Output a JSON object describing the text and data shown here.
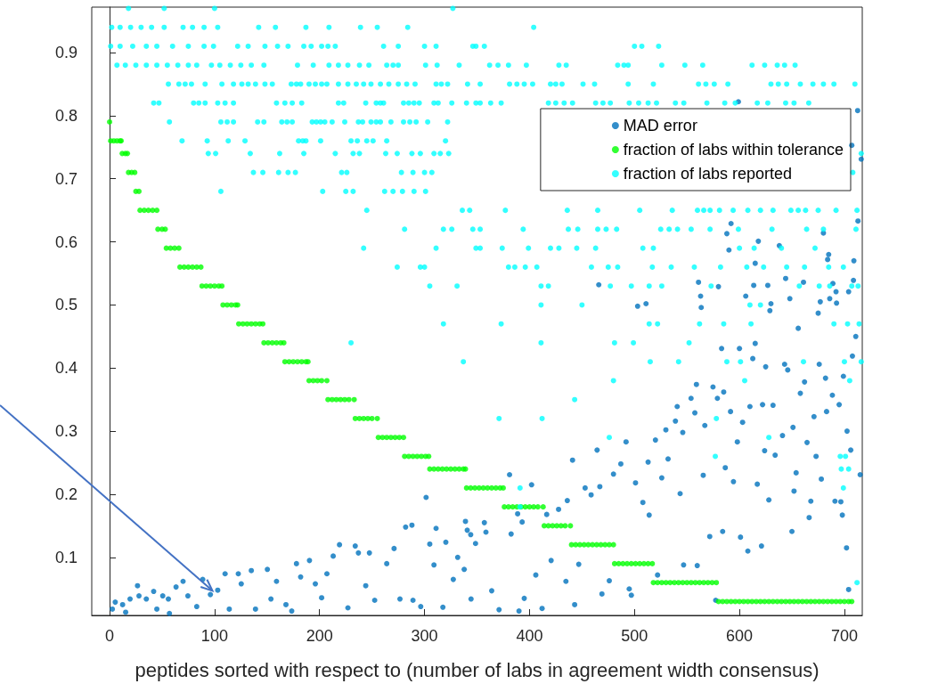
{
  "chart_data": {
    "type": "scatter",
    "xlabel": "peptides sorted with respect to (number of labs in agreement width consensus)",
    "xlim": [
      -17,
      717
    ],
    "xticks": [
      0,
      100,
      200,
      300,
      400,
      500,
      600,
      700
    ],
    "ylim": [
      0.008,
      0.972
    ],
    "yticks": [
      0.1,
      0.2,
      0.3,
      0.4,
      0.5,
      0.6,
      0.7,
      0.8,
      0.9
    ],
    "legend": "top right",
    "marker": "circle",
    "series": [
      {
        "name": "MAD error",
        "color": "#0072bd",
        "x": [
          2.6,
          5.4,
          12.4,
          15.3,
          19.5,
          26.6,
          28,
          35,
          42,
          45,
          50.6,
          56,
          57,
          63.3,
          70,
          74.6,
          83,
          88.7,
          96,
          103,
          110,
          114,
          122.6,
          125.4,
          135,
          139,
          150.3,
          153.7,
          159,
          168,
          173.5,
          178,
          182,
          190.4,
          196,
          202,
          207,
          213,
          219,
          227,
          234,
          237,
          244,
          247.5,
          252.5,
          264,
          271,
          276.6,
          282,
          288,
          289,
          296.4,
          301.5,
          305,
          309,
          311,
          317.5,
          320.3,
          327.4,
          331.6,
          337.8,
          339,
          340.7,
          344,
          344.3,
          348.6,
          357,
          358.5,
          364,
          371,
          381,
          382.5,
          388.7,
          390,
          393,
          395,
          402,
          406,
          412,
          416.4,
          420.6,
          427.7,
          434.7,
          436,
          441,
          443,
          446.9,
          453,
          458.7,
          464.4,
          467,
          469,
          476,
          480,
          487,
          492,
          495,
          497,
          501,
          508,
          513,
          514,
          520,
          522,
          526,
          529.9,
          532,
          539,
          540.7,
          543.5,
          546,
          546.8,
          553.9,
          557.5,
          559,
          559.8,
          565.5,
          567,
          571.7,
          574.8,
          577.4,
          579,
          583,
          584,
          586.5,
          585,
          591.5,
          594.3,
          598,
          600,
          601,
          603,
          608,
          610,
          612.7,
          615,
          617,
          621,
          622,
          624,
          625,
          628,
          629,
          632,
          634,
          641,
          643,
          646,
          650,
          651,
          652,
          654,
          656,
          658,
          662,
          664.4,
          666.4,
          668,
          671,
          673,
          675,
          676,
          678,
          682,
          683,
          688.5,
          691,
          695,
          696.6,
          698,
          699,
          702,
          702.5,
          704,
          706,
          707.6,
          710.8,
          715,
          599,
          712.6,
          707,
          716,
          712.9,
          592,
          588,
          618,
          590,
          638,
          680,
          685,
          684,
          709,
          615,
          644,
          661,
          708.6,
          561,
          466,
          580,
          613.6,
          627,
          689,
          692,
          704,
          606,
          563,
          648,
          503,
          511,
          563.6,
          630,
          677,
          686,
          692.5
        ],
        "values": [
          0.018,
          0.029,
          0.025,
          0.013,
          0.034,
          0.055,
          0.039,
          0.034,
          0.046,
          0.018,
          0.039,
          0.034,
          0.011,
          0.053,
          0.062,
          0.039,
          0.022,
          0.065,
          0.041,
          0.048,
          0.074,
          0.018,
          0.074,
          0.058,
          0.079,
          0.018,
          0.081,
          0.034,
          0.062,
          0.025,
          0.015,
          0.09,
          0.069,
          0.095,
          0.058,
          0.036,
          0.074,
          0.102,
          0.12,
          0.02,
          0.118,
          0.107,
          0.055,
          0.107,
          0.032,
          0.09,
          0.114,
          0.034,
          0.148,
          0.151,
          0.032,
          0.022,
          0.195,
          0.121,
          0.088,
          0.146,
          0.021,
          0.124,
          0.065,
          0.1,
          0.081,
          0.157,
          0.143,
          0.136,
          0.034,
          0.122,
          0.155,
          0.14,
          0.047,
          0.017,
          0.231,
          0.137,
          0.169,
          0.015,
          0.156,
          0.035,
          0.215,
          0.072,
          0.019,
          0.168,
          0.095,
          0.176,
          0.062,
          0.19,
          0.254,
          0.025,
          0.089,
          0.21,
          0.199,
          0.27,
          0.212,
          0.042,
          0.063,
          0.232,
          0.248,
          0.283,
          0.05,
          0.04,
          0.218,
          0.187,
          0.251,
          0.167,
          0.286,
          0.072,
          0.226,
          0.302,
          0.256,
          0.316,
          0.339,
          0.201,
          0.298,
          0.088,
          0.352,
          0.329,
          0.374,
          0.087,
          0.23,
          0.309,
          0.133,
          0.37,
          0.032,
          0.352,
          0.431,
          0.141,
          0.242,
          0.362,
          0.331,
          0.22,
          0.283,
          0.431,
          0.132,
          0.314,
          0.11,
          0.339,
          0.415,
          0.439,
          0.216,
          0.118,
          0.342,
          0.269,
          0.402,
          0.191,
          0.491,
          0.341,
          0.262,
          0.293,
          0.406,
          0.397,
          0.141,
          0.306,
          0.205,
          0.234,
          0.463,
          0.36,
          0.378,
          0.282,
          0.163,
          0.189,
          0.323,
          0.26,
          0.487,
          0.406,
          0.224,
          0.384,
          0.331,
          0.357,
          0.189,
          0.342,
          0.188,
          0.167,
          0.387,
          0.115,
          0.3,
          0.049,
          0.27,
          0.419,
          0.45,
          0.231,
          0.822,
          0.808,
          0.753,
          0.731,
          0.633,
          0.629,
          0.613,
          0.601,
          0.587,
          0.594,
          0.614,
          0.58,
          0.572,
          0.57,
          0.566,
          0.542,
          0.536,
          0.539,
          0.536,
          0.532,
          0.529,
          0.531,
          0.531,
          0.534,
          0.521,
          0.521,
          0.514,
          0.514,
          0.51,
          0.498,
          0.502,
          0.496,
          0.502,
          0.505,
          0.51,
          0.503
        ]
      },
      {
        "name": "fraction of labs within tolerance",
        "color": "#00ff00",
        "x": [
          0,
          1,
          4,
          7,
          10,
          11,
          12,
          15,
          17,
          18,
          21,
          24,
          25,
          28,
          29,
          33,
          37,
          41,
          45,
          46,
          50,
          53,
          54,
          58,
          62,
          66,
          67,
          71,
          75,
          79,
          83,
          87,
          88,
          92,
          96,
          100,
          104,
          107,
          108,
          112,
          116,
          120,
          122,
          123,
          127,
          131,
          135,
          139,
          143,
          146,
          147,
          151,
          155,
          159,
          163,
          166,
          167,
          171,
          175,
          179,
          183,
          187,
          189,
          190,
          194,
          198,
          202,
          207,
          208,
          212,
          216,
          220,
          224,
          228,
          233,
          234,
          238,
          242,
          246,
          250,
          255,
          256,
          260,
          264,
          268,
          272,
          276,
          280,
          281,
          285,
          289,
          293,
          297,
          301,
          304,
          305,
          309,
          313,
          317,
          321,
          325,
          329,
          333,
          337,
          339,
          340,
          344,
          348,
          352,
          356,
          360,
          364,
          368,
          372,
          375,
          376,
          380,
          384,
          388,
          392,
          396,
          400,
          404,
          408,
          413,
          414,
          418,
          422,
          426,
          430,
          434,
          439,
          440,
          444,
          448,
          452,
          456,
          460,
          464,
          468,
          472,
          476,
          480,
          481,
          485,
          489,
          493,
          497,
          501,
          505,
          509,
          513,
          517,
          518,
          522,
          526,
          530,
          534,
          538,
          542,
          546,
          550,
          554,
          558,
          562,
          566,
          570,
          574,
          578,
          580,
          584,
          588,
          592,
          596,
          600,
          604,
          608,
          612,
          616,
          620,
          624,
          628,
          632,
          636,
          640,
          644,
          648,
          652,
          656,
          660,
          664,
          668,
          672,
          676,
          680,
          684,
          688,
          692,
          696,
          700,
          704,
          707
        ],
        "values": [
          0.79,
          0.76,
          0.76,
          0.76,
          0.76,
          0.76,
          0.74,
          0.74,
          0.74,
          0.71,
          0.71,
          0.71,
          0.68,
          0.68,
          0.65,
          0.65,
          0.65,
          0.65,
          0.65,
          0.62,
          0.62,
          0.62,
          0.59,
          0.59,
          0.59,
          0.59,
          0.56,
          0.56,
          0.56,
          0.56,
          0.56,
          0.56,
          0.53,
          0.53,
          0.53,
          0.53,
          0.53,
          0.53,
          0.5,
          0.5,
          0.5,
          0.5,
          0.5,
          0.47,
          0.47,
          0.47,
          0.47,
          0.47,
          0.47,
          0.47,
          0.44,
          0.44,
          0.44,
          0.44,
          0.44,
          0.44,
          0.41,
          0.41,
          0.41,
          0.41,
          0.41,
          0.41,
          0.41,
          0.38,
          0.38,
          0.38,
          0.38,
          0.38,
          0.35,
          0.35,
          0.35,
          0.35,
          0.35,
          0.35,
          0.35,
          0.32,
          0.32,
          0.32,
          0.32,
          0.32,
          0.32,
          0.29,
          0.29,
          0.29,
          0.29,
          0.29,
          0.29,
          0.29,
          0.26,
          0.26,
          0.26,
          0.26,
          0.26,
          0.26,
          0.26,
          0.24,
          0.24,
          0.24,
          0.24,
          0.24,
          0.24,
          0.24,
          0.24,
          0.24,
          0.24,
          0.21,
          0.21,
          0.21,
          0.21,
          0.21,
          0.21,
          0.21,
          0.21,
          0.21,
          0.21,
          0.18,
          0.18,
          0.18,
          0.18,
          0.18,
          0.18,
          0.18,
          0.18,
          0.18,
          0.18,
          0.15,
          0.15,
          0.15,
          0.15,
          0.15,
          0.15,
          0.15,
          0.12,
          0.12,
          0.12,
          0.12,
          0.12,
          0.12,
          0.12,
          0.12,
          0.12,
          0.12,
          0.12,
          0.09,
          0.09,
          0.09,
          0.09,
          0.09,
          0.09,
          0.09,
          0.09,
          0.09,
          0.09,
          0.06,
          0.06,
          0.06,
          0.06,
          0.06,
          0.06,
          0.06,
          0.06,
          0.06,
          0.06,
          0.06,
          0.06,
          0.06,
          0.06,
          0.06,
          0.06,
          0.03,
          0.03,
          0.03,
          0.03,
          0.03,
          0.03,
          0.03,
          0.03,
          0.03,
          0.03,
          0.03,
          0.03,
          0.03,
          0.03,
          0.03,
          0.03,
          0.03,
          0.03,
          0.03,
          0.03,
          0.03,
          0.03,
          0.03,
          0.03,
          0.03,
          0.03,
          0.03,
          0.03,
          0.03,
          0.03,
          0.03,
          0.03,
          0.03
        ]
      },
      {
        "name": "fraction of labs reported",
        "color": "#00ffff",
        "x": [
          18,
          52,
          100,
          327,
          2,
          10,
          20,
          30,
          40,
          52,
          70,
          79,
          90,
          103,
          142,
          158,
          187,
          209,
          239,
          255,
          284,
          404,
          1,
          10,
          22,
          35,
          45,
          60,
          75,
          90,
          99,
          122,
          132,
          148,
          160,
          170,
          185,
          192,
          202,
          208,
          215,
          261,
          275,
          300,
          311,
          346,
          349,
          357,
          500,
          507,
          523,
          7,
          15,
          25,
          35,
          45,
          55,
          65,
          75,
          83,
          97,
          105,
          115,
          125,
          135,
          147,
          179,
          194,
          209,
          218,
          227,
          238,
          247,
          264,
          270,
          275,
          301,
          312,
          333,
          362,
          370,
          380,
          397,
          428,
          435,
          484,
          490,
          494,
          526,
          548,
          565,
          612,
          624,
          636,
          643,
          653,
          56,
          66,
          72,
          78,
          91,
          107,
          118,
          126,
          132,
          139,
          148,
          155,
          173,
          178,
          182,
          190,
          196,
          202,
          207,
          218,
          227,
          235,
          242,
          249,
          258,
          266,
          275,
          283,
          291,
          311,
          316,
          322,
          341,
          353,
          381,
          388,
          395,
          403,
          420,
          425,
          431,
          451,
          462,
          494,
          518,
          561,
          568,
          576,
          589,
          630,
          637,
          645,
          658,
          670,
          680,
          690,
          710,
          42,
          47,
          80,
          85,
          91,
          103,
          110,
          118,
          159,
          167,
          174,
          183,
          218,
          223,
          244,
          254,
          258,
          261,
          280,
          285,
          290,
          295,
          309,
          313,
          326,
          340,
          349,
          353,
          363,
          373,
          418,
          425,
          433,
          441,
          463,
          470,
          477,
          495,
          504,
          513,
          521,
          539,
          547,
          569,
          586,
          596,
          617,
          627,
          644,
          652,
          666,
          57,
          106,
          112,
          118,
          141,
          147,
          164,
          169,
          174,
          193,
          197,
          201,
          205,
          212,
          224,
          237,
          241,
          249,
          254,
          258,
          268,
          280,
          286,
          292,
          303,
          322,
          69,
          93,
          113,
          129,
          180,
          184,
          187,
          201,
          230,
          236,
          245,
          251,
          264,
          320,
          94,
          101,
          134,
          162,
          185,
          215,
          232,
          238,
          263,
          274,
          288,
          296,
          309,
          315,
          323,
          716,
          137,
          146,
          161,
          170,
          177,
          221,
          226,
          278,
          289,
          300,
          307,
          708,
          106,
          203,
          225,
          232,
          262,
          270,
          279,
          290,
          301,
          245,
          336,
          343,
          377,
          436,
          465,
          505,
          536,
          560,
          566,
          572,
          581,
          594,
          608,
          620,
          632,
          649,
          656,
          663,
          675,
          692,
          712,
          281,
          318,
          326,
          346,
          353,
          394,
          437,
          446,
          465,
          473,
          483,
          525,
          533,
          541,
          554,
          572,
          599,
          631,
          664,
          680,
          711,
          242,
          311,
          349,
          353,
          374,
          399,
          420,
          428,
          445,
          463,
          508,
          518,
          600,
          614,
          640,
          672,
          274,
          296,
          300,
          380,
          386,
          396,
          407,
          459,
          475,
          484,
          517,
          535,
          557,
          582,
          607,
          623,
          645,
          662,
          685,
          699,
          305,
          331,
          411,
          418,
          477,
          497,
          514,
          526,
          573,
          657,
          676,
          686,
          707,
          713,
          411,
          450,
          610,
          620,
          318,
          373,
          514,
          522,
          562,
          585,
          611,
          690,
          703,
          714,
          230,
          411,
          481,
          499,
          552,
          337,
          515,
          542,
          588,
          601,
          661,
          700,
          716,
          480,
          605,
          705,
          443,
          371,
          412,
          578,
          476,
          628,
          577,
          696,
          701,
          697,
          704,
          391,
          699,
          391,
          712
        ],
        "values": [
          0.97,
          0.97,
          0.97,
          0.97,
          0.94,
          0.94,
          0.94,
          0.94,
          0.94,
          0.94,
          0.94,
          0.94,
          0.94,
          0.94,
          0.94,
          0.94,
          0.94,
          0.94,
          0.94,
          0.94,
          0.94,
          0.94,
          0.91,
          0.91,
          0.91,
          0.91,
          0.91,
          0.91,
          0.91,
          0.91,
          0.91,
          0.91,
          0.91,
          0.91,
          0.91,
          0.91,
          0.91,
          0.91,
          0.91,
          0.91,
          0.91,
          0.91,
          0.91,
          0.91,
          0.91,
          0.91,
          0.91,
          0.91,
          0.91,
          0.91,
          0.91,
          0.88,
          0.88,
          0.88,
          0.88,
          0.88,
          0.88,
          0.88,
          0.88,
          0.88,
          0.88,
          0.88,
          0.88,
          0.88,
          0.88,
          0.88,
          0.88,
          0.88,
          0.88,
          0.88,
          0.88,
          0.88,
          0.88,
          0.88,
          0.88,
          0.88,
          0.88,
          0.88,
          0.88,
          0.88,
          0.88,
          0.88,
          0.88,
          0.88,
          0.88,
          0.88,
          0.88,
          0.88,
          0.88,
          0.88,
          0.88,
          0.88,
          0.88,
          0.88,
          0.88,
          0.88,
          0.85,
          0.85,
          0.85,
          0.85,
          0.85,
          0.85,
          0.85,
          0.85,
          0.85,
          0.85,
          0.85,
          0.85,
          0.85,
          0.85,
          0.85,
          0.85,
          0.85,
          0.85,
          0.85,
          0.85,
          0.85,
          0.85,
          0.85,
          0.85,
          0.85,
          0.85,
          0.85,
          0.85,
          0.85,
          0.85,
          0.85,
          0.85,
          0.85,
          0.85,
          0.85,
          0.85,
          0.85,
          0.85,
          0.85,
          0.85,
          0.85,
          0.85,
          0.85,
          0.85,
          0.85,
          0.85,
          0.85,
          0.85,
          0.85,
          0.85,
          0.85,
          0.85,
          0.85,
          0.85,
          0.85,
          0.85,
          0.85,
          0.82,
          0.82,
          0.82,
          0.82,
          0.82,
          0.82,
          0.82,
          0.82,
          0.82,
          0.82,
          0.82,
          0.82,
          0.82,
          0.82,
          0.82,
          0.82,
          0.82,
          0.82,
          0.82,
          0.82,
          0.82,
          0.82,
          0.82,
          0.82,
          0.82,
          0.82,
          0.82,
          0.82,
          0.82,
          0.82,
          0.82,
          0.82,
          0.82,
          0.82,
          0.82,
          0.82,
          0.82,
          0.82,
          0.82,
          0.82,
          0.82,
          0.82,
          0.82,
          0.82,
          0.82,
          0.82,
          0.82,
          0.82,
          0.82,
          0.82,
          0.82,
          0.79,
          0.79,
          0.79,
          0.79,
          0.79,
          0.79,
          0.79,
          0.79,
          0.79,
          0.79,
          0.79,
          0.79,
          0.79,
          0.79,
          0.79,
          0.79,
          0.79,
          0.79,
          0.79,
          0.79,
          0.79,
          0.79,
          0.79,
          0.79,
          0.79,
          0.79,
          0.76,
          0.76,
          0.76,
          0.76,
          0.76,
          0.76,
          0.76,
          0.76,
          0.76,
          0.76,
          0.76,
          0.76,
          0.76,
          0.76,
          0.74,
          0.74,
          0.74,
          0.74,
          0.74,
          0.74,
          0.74,
          0.74,
          0.74,
          0.74,
          0.74,
          0.74,
          0.74,
          0.74,
          0.74,
          0.74,
          0.71,
          0.71,
          0.71,
          0.71,
          0.71,
          0.71,
          0.71,
          0.71,
          0.71,
          0.71,
          0.71,
          0.71,
          0.68,
          0.68,
          0.68,
          0.68,
          0.68,
          0.68,
          0.68,
          0.68,
          0.68,
          0.65,
          0.65,
          0.65,
          0.65,
          0.65,
          0.65,
          0.65,
          0.65,
          0.65,
          0.65,
          0.65,
          0.65,
          0.65,
          0.65,
          0.65,
          0.65,
          0.65,
          0.65,
          0.65,
          0.65,
          0.65,
          0.65,
          0.62,
          0.62,
          0.62,
          0.62,
          0.62,
          0.62,
          0.62,
          0.62,
          0.62,
          0.62,
          0.62,
          0.62,
          0.62,
          0.62,
          0.62,
          0.62,
          0.62,
          0.62,
          0.62,
          0.62,
          0.62,
          0.59,
          0.59,
          0.59,
          0.59,
          0.59,
          0.59,
          0.59,
          0.59,
          0.59,
          0.59,
          0.59,
          0.59,
          0.59,
          0.59,
          0.59,
          0.59,
          0.56,
          0.56,
          0.56,
          0.56,
          0.56,
          0.56,
          0.56,
          0.56,
          0.56,
          0.56,
          0.56,
          0.56,
          0.56,
          0.56,
          0.56,
          0.56,
          0.56,
          0.56,
          0.56,
          0.56,
          0.53,
          0.53,
          0.53,
          0.53,
          0.53,
          0.53,
          0.53,
          0.53,
          0.53,
          0.53,
          0.53,
          0.53,
          0.53,
          0.53,
          0.5,
          0.5,
          0.5,
          0.5,
          0.47,
          0.47,
          0.47,
          0.47,
          0.47,
          0.47,
          0.47,
          0.47,
          0.47,
          0.47,
          0.44,
          0.44,
          0.44,
          0.44,
          0.44,
          0.41,
          0.41,
          0.41,
          0.41,
          0.41,
          0.41,
          0.41,
          0.41,
          0.38,
          0.38,
          0.38,
          0.35,
          0.32,
          0.32,
          0.32,
          0.29,
          0.29,
          0.26,
          0.26,
          0.26,
          0.24,
          0.24,
          0.21,
          0.21,
          0.18,
          0.06
        ]
      }
    ]
  }
}
